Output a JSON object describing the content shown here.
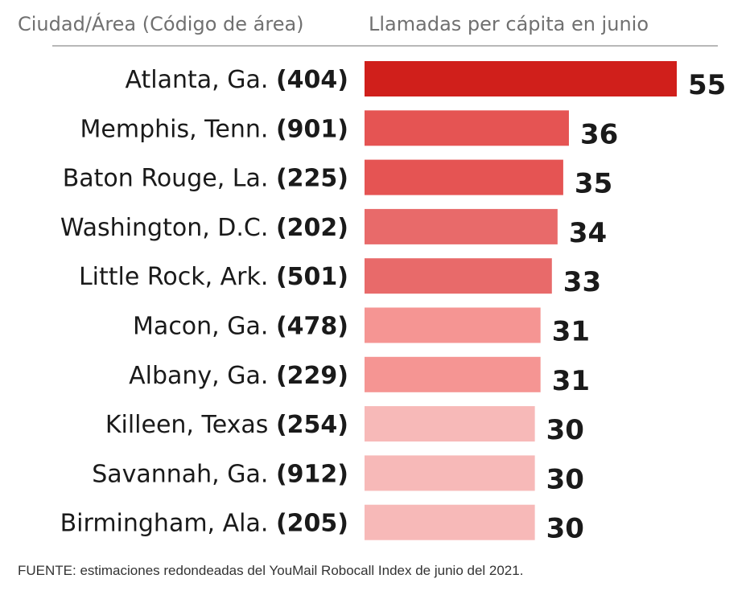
{
  "header": {
    "left": "Ciudad/Área (Código de área)",
    "right": "Llamadas per cápita en junio"
  },
  "source": "FUENTE: estimaciones redondeadas del YouMail Robocall Index de junio del 2021.",
  "chart_data": {
    "type": "bar",
    "orientation": "horizontal",
    "categories": [
      "Atlanta, Ga. (404)",
      "Memphis, Tenn. (901)",
      "Baton Rouge, La. (225)",
      "Washington, D.C. (202)",
      "Little Rock, Ark. (501)",
      "Macon, Ga. (478)",
      "Albany, Ga. (229)",
      "Killeen, Texas (254)",
      "Savannah, Ga. (912)",
      "Birmingham, Ala. (205)"
    ],
    "rows": [
      {
        "city": "Atlanta, Ga.",
        "code": "(404)",
        "value": 55,
        "color": "#d01f1b"
      },
      {
        "city": "Memphis, Tenn.",
        "code": "(901)",
        "value": 36,
        "color": "#e55453"
      },
      {
        "city": "Baton Rouge, La.",
        "code": "(225)",
        "value": 35,
        "color": "#e55453"
      },
      {
        "city": "Washington, D.C.",
        "code": "(202)",
        "value": 34,
        "color": "#e86a6a"
      },
      {
        "city": "Little Rock, Ark.",
        "code": "(501)",
        "value": 33,
        "color": "#e86a6a"
      },
      {
        "city": "Macon, Ga.",
        "code": "(478)",
        "value": 31,
        "color": "#f59593"
      },
      {
        "city": "Albany, Ga.",
        "code": "(229)",
        "value": 31,
        "color": "#f59593"
      },
      {
        "city": "Killeen, Texas",
        "code": "(254)",
        "value": 30,
        "color": "#f7b9b8"
      },
      {
        "city": "Savannah, Ga.",
        "code": "(912)",
        "value": 30,
        "color": "#f7b9b8"
      },
      {
        "city": "Birmingham, Ala.",
        "code": "(205)",
        "value": 30,
        "color": "#f7b9b8"
      }
    ],
    "values": [
      55,
      36,
      35,
      34,
      33,
      31,
      31,
      30,
      30,
      30
    ],
    "xlim": [
      0,
      55
    ],
    "grid": false,
    "legend": "none"
  }
}
